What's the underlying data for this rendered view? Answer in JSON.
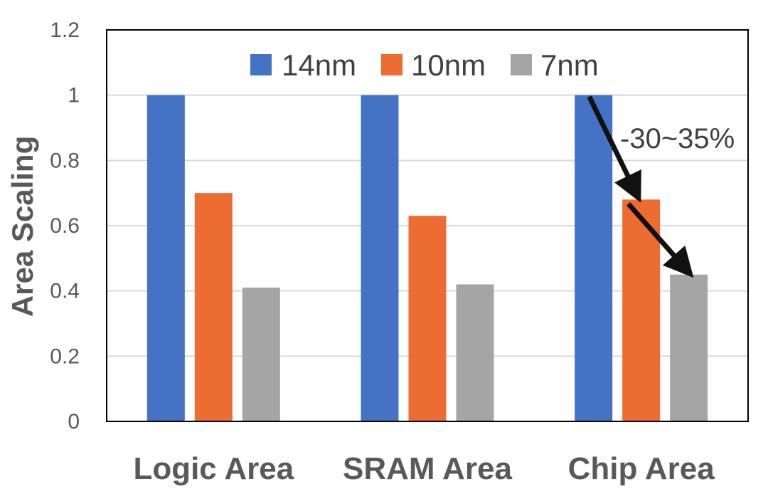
{
  "chart_data": {
    "type": "bar",
    "categories": [
      "Logic Area",
      "SRAM Area",
      "Chip Area"
    ],
    "series": [
      {
        "name": "14nm",
        "color": "#4472C4",
        "values": [
          1.0,
          1.0,
          1.0
        ]
      },
      {
        "name": "10nm",
        "color": "#ED6C32",
        "values": [
          0.7,
          0.63,
          0.68
        ]
      },
      {
        "name": "7nm",
        "color": "#A5A5A5",
        "values": [
          0.41,
          0.42,
          0.45
        ]
      }
    ],
    "ylabel": "Area Scaling",
    "ylim": [
      0,
      1.2
    ],
    "yticks": [
      "0",
      "0.2",
      "0.4",
      "0.6",
      "0.8",
      "1",
      "1.2"
    ],
    "grid": true,
    "legend_position": "top-center",
    "annotation": {
      "text": "-30~35%",
      "category": "Chip Area"
    }
  }
}
